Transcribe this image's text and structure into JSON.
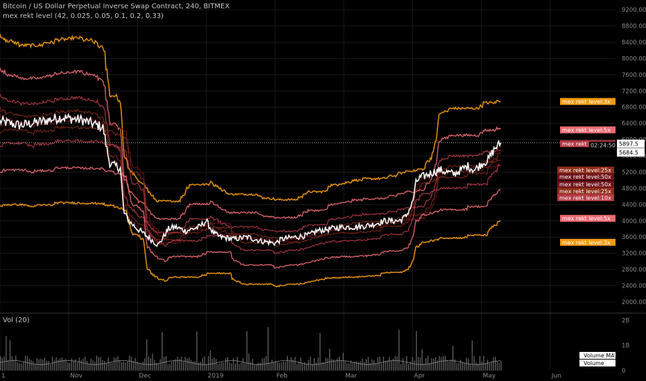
{
  "header": {
    "title": "Bitcoin / US Dollar Perpetual Inverse Swap Contract, 240, BITMEX",
    "indicator": "mex rekt level (42, 0.025, 0.05, 0.1, 0.2, 0.33)",
    "volume_title": "Vol (20)"
  },
  "chart_data": {
    "type": "line",
    "y_ticks": [
      "9200.00",
      "8800.00",
      "8400.00",
      "8000.00",
      "7600.00",
      "7200.00",
      "6800.00",
      "6400.00",
      "6000.00",
      "5600.00",
      "5200.00",
      "4800.00",
      "4400.00",
      "4000.00",
      "3600.00",
      "3200.00",
      "2800.00",
      "2400.00",
      "2000.00"
    ],
    "ylim": [
      1760,
      9440
    ],
    "x_ticks": [
      {
        "label": "1",
        "month": 0.0
      },
      {
        "label": "Nov",
        "month": 1.0
      },
      {
        "label": "Dec",
        "month": 2.0
      },
      {
        "label": "2019",
        "month": 3.0
      },
      {
        "label": "Feb",
        "month": 4.0
      },
      {
        "label": "Mar",
        "month": 5.0
      },
      {
        "label": "Apr",
        "month": 6.0
      },
      {
        "label": "May",
        "month": 7.0
      },
      {
        "label": "Jun",
        "month": 8.0
      }
    ],
    "xlim": [
      0,
      8.95
    ],
    "volume_ticks": [
      "2B",
      "1B",
      "0"
    ],
    "volume_ylim": [
      0,
      2.2
    ],
    "price_readout": "5897.5",
    "countdown": "02:24:50",
    "ma_readout": "5684.5",
    "price": {
      "month": [
        0.0,
        0.3,
        0.6,
        0.9,
        1.2,
        1.5,
        1.56,
        1.6,
        1.75,
        1.8,
        1.9,
        2.0,
        2.15,
        2.3,
        2.45,
        2.55,
        2.7,
        2.9,
        3.0,
        3.1,
        3.2,
        3.4,
        3.6,
        3.8,
        4.0,
        4.1,
        4.3,
        4.5,
        4.6,
        4.8,
        5.0,
        5.2,
        5.4,
        5.6,
        5.8,
        5.9,
        6.0,
        6.05,
        6.1,
        6.3,
        6.4,
        6.6,
        6.8,
        6.9,
        7.0,
        7.1,
        7.2,
        7.28
      ],
      "values": [
        6450,
        6350,
        6450,
        6550,
        6480,
        6300,
        5700,
        5400,
        5300,
        4200,
        3950,
        3800,
        3600,
        3400,
        3800,
        3850,
        3750,
        3850,
        4000,
        3700,
        3600,
        3550,
        3600,
        3500,
        3450,
        3550,
        3600,
        3650,
        3750,
        3800,
        3850,
        3850,
        3900,
        4000,
        4000,
        4100,
        4450,
        4950,
        5050,
        5200,
        5250,
        5150,
        5350,
        5250,
        5400,
        5500,
        5800,
        5900
      ]
    },
    "levels_above": [
      {
        "name": "3x",
        "pct": 0.33,
        "color": "#f49a10",
        "width": 1.6,
        "label": "mex rekt level:3x"
      },
      {
        "name": "5x",
        "pct": 0.2,
        "color": "#ec6a72",
        "width": 1.4,
        "label": "mex rekt level:5x"
      },
      {
        "name": "10x",
        "pct": 0.1,
        "color": "#b63b46",
        "width": 1.2,
        "label": "mex rekt level:10x"
      },
      {
        "name": "25x",
        "pct": 0.05,
        "color": "#8e2d17",
        "width": 1.0,
        "label": "mex rekt level:25x"
      },
      {
        "name": "50x",
        "pct": 0.025,
        "color": "#6e141a",
        "width": 1.0,
        "label": "mex rekt level:50x"
      }
    ],
    "levels_below": [
      {
        "name": "50x",
        "pct": 0.025,
        "color": "#6e141a",
        "width": 1.0,
        "label": "mex rekt level:50x"
      },
      {
        "name": "25x",
        "pct": 0.05,
        "color": "#8e2d17",
        "width": 1.0,
        "label": "mex rekt level:25x"
      },
      {
        "name": "10x",
        "pct": 0.1,
        "color": "#b63b46",
        "width": 1.2,
        "label": "mex rekt level:10x"
      },
      {
        "name": "5x",
        "pct": 0.2,
        "color": "#ec6a72",
        "width": 1.4,
        "label": "mex rekt level:5x"
      },
      {
        "name": "3x",
        "pct": 0.33,
        "color": "#f49a10",
        "width": 1.6,
        "label": "mex rekt level:3x"
      }
    ],
    "volume_legend": [
      "Volume MA",
      "Volume"
    ],
    "colors": {
      "price": "#ffffff",
      "volume": "#6a6a6a",
      "grid": "#1a1a1a",
      "axis_text": "#8a8a8a"
    }
  }
}
